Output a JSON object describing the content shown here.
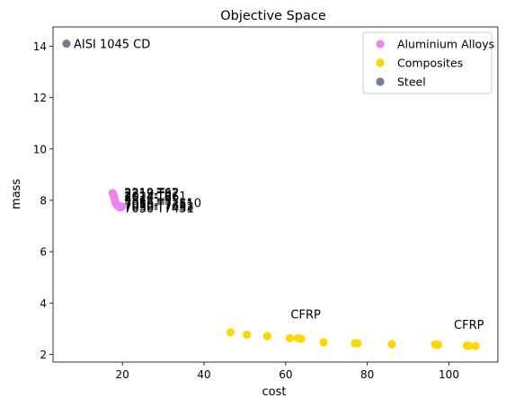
{
  "chart_data": {
    "type": "scatter",
    "title": "Objective Space",
    "xlabel": "cost",
    "ylabel": "mass",
    "xlim": [
      3,
      112
    ],
    "ylim": [
      1.7,
      14.75
    ],
    "xticks": [
      20,
      40,
      60,
      80,
      100
    ],
    "yticks": [
      2,
      4,
      6,
      8,
      10,
      12,
      14
    ],
    "grid": false,
    "legend_position": "top-right",
    "series": [
      {
        "name": "Aluminium Alloys",
        "color": "#ee82ee",
        "points": [
          {
            "x": 17.6,
            "y": 8.28
          },
          {
            "x": 17.9,
            "y": 8.18
          },
          {
            "x": 18.1,
            "y": 8.05
          },
          {
            "x": 18.3,
            "y": 7.92
          },
          {
            "x": 18.6,
            "y": 7.84
          },
          {
            "x": 18.9,
            "y": 7.78
          },
          {
            "x": 19.2,
            "y": 7.74
          },
          {
            "x": 19.6,
            "y": 7.72
          },
          {
            "x": 19.9,
            "y": 7.76
          }
        ]
      },
      {
        "name": "Composites",
        "color": "#ffd700",
        "points": [
          {
            "x": 46.5,
            "y": 2.86
          },
          {
            "x": 50.5,
            "y": 2.77
          },
          {
            "x": 55.5,
            "y": 2.71
          },
          {
            "x": 61.0,
            "y": 2.63
          },
          {
            "x": 63.0,
            "y": 2.63
          },
          {
            "x": 63.8,
            "y": 2.6
          },
          {
            "x": 69.3,
            "y": 2.47
          },
          {
            "x": 77.0,
            "y": 2.43
          },
          {
            "x": 77.6,
            "y": 2.43
          },
          {
            "x": 86.0,
            "y": 2.39
          },
          {
            "x": 96.6,
            "y": 2.39
          },
          {
            "x": 97.3,
            "y": 2.38
          },
          {
            "x": 104.4,
            "y": 2.34
          },
          {
            "x": 104.9,
            "y": 2.33
          },
          {
            "x": 106.5,
            "y": 2.32
          }
        ]
      },
      {
        "name": "Steel",
        "color": "#708090",
        "points": [
          {
            "x": 6.3,
            "y": 14.1
          }
        ]
      }
    ],
    "annotations": [
      {
        "text": "AISI 1045 CD",
        "x": 6.3,
        "y": 14.1
      },
      {
        "text": "2219-T62",
        "x": 20.0,
        "y": 8.28
      },
      {
        "text": "2219-T87",
        "x": 20.0,
        "y": 8.22
      },
      {
        "text": "2024-T861",
        "x": 20.0,
        "y": 8.14
      },
      {
        "text": "2014-T6",
        "x": 20.0,
        "y": 8.1
      },
      {
        "text": "7050-T7451",
        "x": 20.0,
        "y": 7.82
      },
      {
        "text": "7075-T7351",
        "x": 20.0,
        "y": 7.8
      },
      {
        "text": "7055-T77510",
        "x": 20.0,
        "y": 7.88
      },
      {
        "text": "7050-T7452",
        "x": 20.0,
        "y": 7.74
      },
      {
        "text": "7030-T7451",
        "x": 20.0,
        "y": 7.66
      },
      {
        "text": "CFRP",
        "x": 60.5,
        "y": 3.25
      },
      {
        "text": "CFRP",
        "x": 100.5,
        "y": 2.85
      }
    ]
  }
}
